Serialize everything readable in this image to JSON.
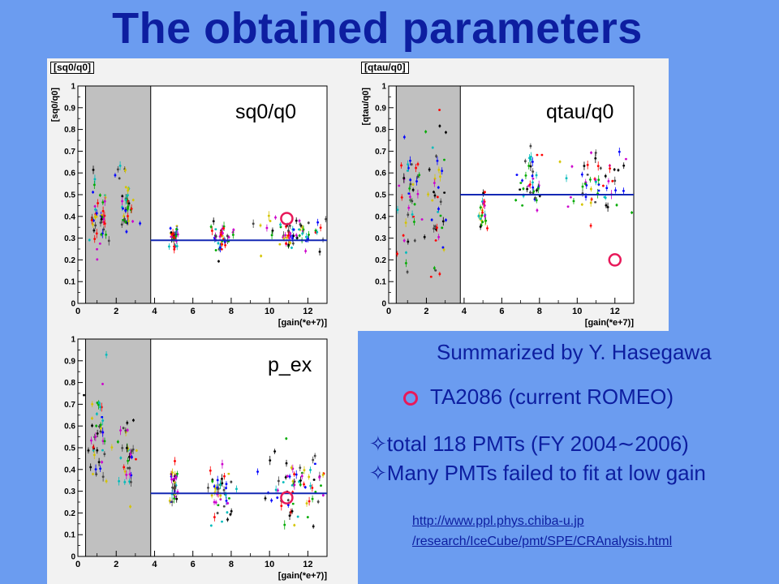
{
  "slide": {
    "title": "The obtained parameters",
    "summary": "Summarized by Y. Hasegawa",
    "legend_text": "TA2086 (current ROMEO)",
    "bullets": [
      "✧total 118 PMTs (FY 2004∼2006)",
      "✧Many PMTs failed to fit at low gain"
    ],
    "link_lines": [
      "http://www.ppl.phys.chiba-u.jp",
      "/research/IceCube/pmt/SPE/CRAnalysis.html"
    ],
    "colors": {
      "background": "#6b9cf0",
      "title": "#0d1ea0",
      "highlight_circle": "#e8195a",
      "fit_line": "#1428b4",
      "shaded_region": "#c0c0c0"
    }
  },
  "chart_data": [
    {
      "type": "scatter",
      "tag": "[sq0/q0]",
      "label": "sq0/q0",
      "ylabel": "[sq0/q0]",
      "xlabel": "[gain(*e+7)]",
      "xlim": [
        0,
        13
      ],
      "ylim": [
        0,
        1
      ],
      "xticks": [
        0,
        2,
        4,
        6,
        8,
        10,
        12
      ],
      "yticks": [
        0,
        0.1,
        0.2,
        0.3,
        0.4,
        0.5,
        0.6,
        0.7,
        0.8,
        0.9,
        1
      ],
      "shaded_region_x": [
        0.4,
        3.8
      ],
      "fit_line_y": 0.29,
      "fit_line_x_start": 3.8,
      "highlight_point": [
        10.9,
        0.39
      ],
      "clusters": [
        {
          "x": 1.1,
          "y": 0.42,
          "sx": 0.25,
          "sy": 0.07,
          "n": 45
        },
        {
          "x": 2.6,
          "y": 0.44,
          "sx": 0.2,
          "sy": 0.06,
          "n": 35
        },
        {
          "x": 2.2,
          "y": 0.6,
          "sx": 0.3,
          "sy": 0.03,
          "n": 6
        },
        {
          "x": 5.0,
          "y": 0.3,
          "sx": 0.12,
          "sy": 0.03,
          "n": 30
        },
        {
          "x": 7.5,
          "y": 0.3,
          "sx": 0.35,
          "sy": 0.035,
          "n": 40
        },
        {
          "x": 11.3,
          "y": 0.32,
          "sx": 0.9,
          "sy": 0.04,
          "n": 70
        }
      ]
    },
    {
      "type": "scatter",
      "tag": "[qtau/q0]",
      "label": "qtau/q0",
      "ylabel": "[qtau/q0]",
      "xlabel": "[gain(*e+7)]",
      "xlim": [
        0,
        13
      ],
      "ylim": [
        0,
        1
      ],
      "xticks": [
        0,
        2,
        4,
        6,
        8,
        10,
        12
      ],
      "yticks": [
        0,
        0.1,
        0.2,
        0.3,
        0.4,
        0.5,
        0.6,
        0.7,
        0.8,
        0.9,
        1
      ],
      "shaded_region_x": [
        0.4,
        3.8
      ],
      "fit_line_y": 0.5,
      "fit_line_x_start": 3.8,
      "highlight_point": [
        12.0,
        0.2
      ],
      "clusters": [
        {
          "x": 1.1,
          "y": 0.45,
          "sx": 0.3,
          "sy": 0.18,
          "n": 45
        },
        {
          "x": 2.6,
          "y": 0.45,
          "sx": 0.25,
          "sy": 0.22,
          "n": 40
        },
        {
          "x": 5.0,
          "y": 0.42,
          "sx": 0.1,
          "sy": 0.04,
          "n": 25
        },
        {
          "x": 7.5,
          "y": 0.55,
          "sx": 0.4,
          "sy": 0.07,
          "n": 40
        },
        {
          "x": 11.2,
          "y": 0.55,
          "sx": 1.0,
          "sy": 0.07,
          "n": 60
        }
      ]
    },
    {
      "type": "scatter",
      "tag": "",
      "label": "p_ex",
      "ylabel": "",
      "xlabel": "[gain(*e+7)]",
      "xlim": [
        0,
        13
      ],
      "ylim": [
        0,
        1
      ],
      "xticks": [
        0,
        2,
        4,
        6,
        8,
        10,
        12
      ],
      "yticks": [
        0,
        0.1,
        0.2,
        0.3,
        0.4,
        0.5,
        0.6,
        0.7,
        0.8,
        0.9,
        1
      ],
      "shaded_region_x": [
        0.4,
        3.8
      ],
      "fit_line_y": 0.29,
      "fit_line_x_start": 3.8,
      "highlight_point": [
        10.9,
        0.27
      ],
      "clusters": [
        {
          "x": 1.1,
          "y": 0.55,
          "sx": 0.25,
          "sy": 0.12,
          "n": 45
        },
        {
          "x": 2.6,
          "y": 0.45,
          "sx": 0.25,
          "sy": 0.1,
          "n": 35
        },
        {
          "x": 5.0,
          "y": 0.33,
          "sx": 0.12,
          "sy": 0.06,
          "n": 35
        },
        {
          "x": 7.5,
          "y": 0.28,
          "sx": 0.35,
          "sy": 0.06,
          "n": 45
        },
        {
          "x": 11.3,
          "y": 0.33,
          "sx": 0.9,
          "sy": 0.07,
          "n": 70
        }
      ]
    }
  ]
}
